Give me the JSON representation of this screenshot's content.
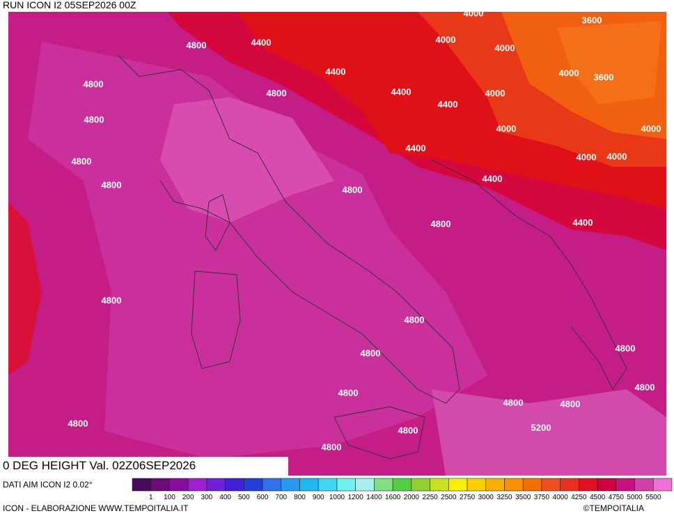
{
  "header": {
    "run": "RUN ICON I2 05SEP2026 00Z",
    "field": "0 DEG HEIGHT Val. 02Z06SEP2026",
    "source": "DATI AIM ICON I2 0.02°"
  },
  "map": {
    "contour_labels": [
      4000,
      3600,
      4400,
      4800,
      4000,
      4000,
      4400,
      4000,
      3600,
      4800,
      4800,
      4400,
      4000,
      4400,
      4800,
      4000,
      4000,
      4400,
      4000,
      4000,
      4800,
      4800,
      4400,
      4800,
      4800,
      4400,
      4800,
      4800,
      4800,
      4800,
      4800,
      4800,
      4800,
      4800,
      4800,
      4800,
      5200,
      4800
    ]
  },
  "legend": {
    "colors": [
      "#4b0a5c",
      "#6a0a7a",
      "#880ca0",
      "#a020d0",
      "#7020d8",
      "#4020d8",
      "#2040d8",
      "#3070e8",
      "#2898f0",
      "#20b8f0",
      "#40d8f0",
      "#70f0f0",
      "#a8f0f0",
      "#80e080",
      "#50d040",
      "#90d030",
      "#c8e020",
      "#f8f000",
      "#f8d000",
      "#f8b000",
      "#f89000",
      "#f07000",
      "#f05020",
      "#e83020",
      "#e01020",
      "#d00040",
      "#c81080",
      "#d040a8",
      "#f070d8"
    ],
    "labels": [
      1,
      100,
      200,
      300,
      400,
      500,
      600,
      700,
      800,
      900,
      1000,
      1200,
      1400,
      1600,
      2000,
      2250,
      2500,
      2750,
      3000,
      3250,
      3500,
      3750,
      4000,
      4250,
      4500,
      4750,
      5000,
      5500
    ]
  },
  "footer": {
    "left": "ICON - ELABORAZIONE WWW.TEMPOITALIA.IT",
    "right": "©TEMPOITALIA"
  }
}
